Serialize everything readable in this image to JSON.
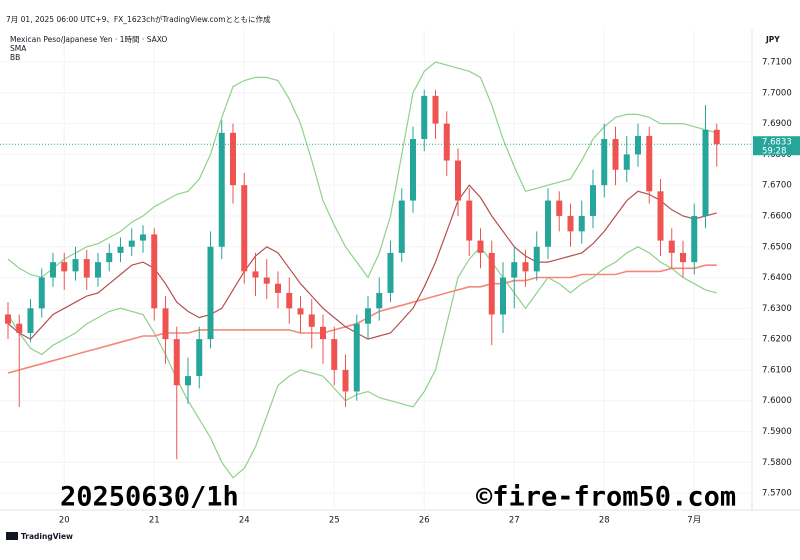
{
  "header": {
    "title": "7月 01, 2025 06:00 UTC+9、FX_1623chがTradingView.comとともに作成",
    "symbol": "Mexican Peso/Japanese Yen · 1時間 · SAXO"
  },
  "footer": {
    "brand": "TradingView"
  },
  "chart_data": {
    "type": "candlestick",
    "currency": "JPY",
    "annotations": [
      "20250630/1h",
      "©fire-from50.com"
    ],
    "categories": [
      null,
      null,
      null,
      null,
      null,
      "20",
      null,
      null,
      null,
      null,
      null,
      null,
      null,
      "21",
      null,
      null,
      null,
      null,
      null,
      null,
      null,
      "24",
      null,
      null,
      null,
      null,
      null,
      null,
      null,
      "25",
      null,
      null,
      null,
      null,
      null,
      null,
      null,
      "26",
      null,
      null,
      null,
      null,
      null,
      null,
      null,
      "27",
      null,
      null,
      null,
      null,
      null,
      null,
      null,
      "28",
      null,
      null,
      null,
      null,
      null,
      null,
      null,
      "7月",
      null,
      null
    ],
    "up_color": "#26a69a",
    "down_color": "#ef5350",
    "ohlc": [
      [
        7.628,
        7.632,
        7.62,
        7.625
      ],
      [
        7.625,
        7.628,
        7.598,
        7.622
      ],
      [
        7.622,
        7.633,
        7.619,
        7.63
      ],
      [
        7.63,
        7.643,
        7.627,
        7.64
      ],
      [
        7.64,
        7.648,
        7.637,
        7.645
      ],
      [
        7.645,
        7.648,
        7.636,
        7.642
      ],
      [
        7.642,
        7.65,
        7.639,
        7.646
      ],
      [
        7.646,
        7.649,
        7.636,
        7.64
      ],
      [
        7.64,
        7.648,
        7.637,
        7.645
      ],
      [
        7.645,
        7.651,
        7.642,
        7.648
      ],
      [
        7.648,
        7.653,
        7.645,
        7.65
      ],
      [
        7.65,
        7.656,
        7.647,
        7.652
      ],
      [
        7.652,
        7.657,
        7.648,
        7.654
      ],
      [
        7.654,
        7.656,
        7.626,
        7.63
      ],
      [
        7.63,
        7.634,
        7.612,
        7.62
      ],
      [
        7.62,
        7.624,
        7.581,
        7.605
      ],
      [
        7.605,
        7.614,
        7.599,
        7.608
      ],
      [
        7.608,
        7.624,
        7.604,
        7.62
      ],
      [
        7.62,
        7.655,
        7.617,
        7.65
      ],
      [
        7.65,
        7.691,
        7.646,
        7.687
      ],
      [
        7.687,
        7.69,
        7.664,
        7.67
      ],
      [
        7.67,
        7.674,
        7.638,
        7.642
      ],
      [
        7.642,
        7.648,
        7.634,
        7.64
      ],
      [
        7.64,
        7.646,
        7.633,
        7.638
      ],
      [
        7.638,
        7.642,
        7.63,
        7.635
      ],
      [
        7.635,
        7.64,
        7.625,
        7.63
      ],
      [
        7.63,
        7.634,
        7.622,
        7.628
      ],
      [
        7.628,
        7.633,
        7.617,
        7.624
      ],
      [
        7.624,
        7.628,
        7.612,
        7.62
      ],
      [
        7.62,
        7.624,
        7.605,
        7.61
      ],
      [
        7.61,
        7.615,
        7.598,
        7.603
      ],
      [
        7.603,
        7.628,
        7.6,
        7.625
      ],
      [
        7.625,
        7.634,
        7.62,
        7.63
      ],
      [
        7.63,
        7.64,
        7.626,
        7.635
      ],
      [
        7.635,
        7.652,
        7.632,
        7.648
      ],
      [
        7.648,
        7.669,
        7.645,
        7.665
      ],
      [
        7.665,
        7.689,
        7.661,
        7.685
      ],
      [
        7.685,
        7.701,
        7.681,
        7.699
      ],
      [
        7.699,
        7.701,
        7.685,
        7.69
      ],
      [
        7.69,
        7.694,
        7.673,
        7.678
      ],
      [
        7.678,
        7.682,
        7.66,
        7.665
      ],
      [
        7.665,
        7.669,
        7.647,
        7.652
      ],
      [
        7.652,
        7.656,
        7.643,
        7.648
      ],
      [
        7.648,
        7.652,
        7.618,
        7.628
      ],
      [
        7.628,
        7.645,
        7.622,
        7.64
      ],
      [
        7.64,
        7.65,
        7.63,
        7.645
      ],
      [
        7.645,
        7.649,
        7.637,
        7.642
      ],
      [
        7.642,
        7.655,
        7.639,
        7.65
      ],
      [
        7.65,
        7.669,
        7.646,
        7.665
      ],
      [
        7.665,
        7.668,
        7.655,
        7.66
      ],
      [
        7.66,
        7.664,
        7.65,
        7.655
      ],
      [
        7.655,
        7.665,
        7.651,
        7.66
      ],
      [
        7.66,
        7.675,
        7.656,
        7.67
      ],
      [
        7.67,
        7.69,
        7.666,
        7.685
      ],
      [
        7.685,
        7.689,
        7.67,
        7.675
      ],
      [
        7.675,
        7.686,
        7.671,
        7.68
      ],
      [
        7.68,
        7.69,
        7.676,
        7.686
      ],
      [
        7.686,
        7.689,
        7.664,
        7.668
      ],
      [
        7.668,
        7.672,
        7.647,
        7.652
      ],
      [
        7.652,
        7.656,
        7.643,
        7.648
      ],
      [
        7.648,
        7.652,
        7.64,
        7.645
      ],
      [
        7.645,
        7.664,
        7.641,
        7.66
      ],
      [
        7.66,
        7.696,
        7.656,
        7.688
      ],
      [
        7.688,
        7.69,
        7.676,
        7.6833
      ]
    ],
    "overlays": [
      {
        "name": "SMA",
        "color": "#f4877a",
        "values": [
          7.609,
          7.61,
          7.611,
          7.612,
          7.613,
          7.614,
          7.615,
          7.616,
          7.617,
          7.618,
          7.619,
          7.62,
          7.621,
          7.621,
          7.622,
          7.622,
          7.622,
          7.623,
          7.623,
          7.623,
          7.623,
          7.623,
          7.623,
          7.623,
          7.623,
          7.623,
          7.622,
          7.622,
          7.622,
          7.623,
          7.624,
          7.625,
          7.627,
          7.629,
          7.63,
          7.631,
          7.632,
          7.633,
          7.634,
          7.635,
          7.636,
          7.637,
          7.637,
          7.638,
          7.638,
          7.639,
          7.639,
          7.64,
          7.64,
          7.64,
          7.64,
          7.641,
          7.641,
          7.641,
          7.641,
          7.642,
          7.642,
          7.642,
          7.642,
          7.643,
          7.643,
          7.643,
          7.644,
          7.644
        ]
      },
      {
        "name": "BB",
        "basis_color": "#b5504f",
        "band_color": "#8fd18a",
        "basis": [
          7.625,
          7.622,
          7.62,
          7.624,
          7.628,
          7.63,
          7.632,
          7.634,
          7.635,
          7.638,
          7.641,
          7.644,
          7.645,
          7.643,
          7.638,
          7.632,
          7.629,
          7.627,
          7.628,
          7.63,
          7.636,
          7.642,
          7.647,
          7.65,
          7.648,
          7.643,
          7.638,
          7.634,
          7.63,
          7.627,
          7.624,
          7.622,
          7.62,
          7.621,
          7.622,
          7.626,
          7.63,
          7.637,
          7.645,
          7.655,
          7.665,
          7.67,
          7.666,
          7.66,
          7.655,
          7.65,
          7.647,
          7.645,
          7.645,
          7.646,
          7.647,
          7.648,
          7.651,
          7.655,
          7.66,
          7.665,
          7.668,
          7.667,
          7.665,
          7.662,
          7.66,
          7.659,
          7.66,
          7.661
        ],
        "upper": [
          7.646,
          7.643,
          7.641,
          7.64,
          7.643,
          7.646,
          7.648,
          7.65,
          7.651,
          7.653,
          7.655,
          7.658,
          7.66,
          7.663,
          7.665,
          7.667,
          7.668,
          7.672,
          7.68,
          7.692,
          7.702,
          7.704,
          7.705,
          7.705,
          7.704,
          7.698,
          7.69,
          7.678,
          7.665,
          7.657,
          7.65,
          7.645,
          7.64,
          7.648,
          7.66,
          7.68,
          7.7,
          7.707,
          7.71,
          7.709,
          7.708,
          7.707,
          7.705,
          7.696,
          7.685,
          7.676,
          7.668,
          7.669,
          7.67,
          7.671,
          7.672,
          7.678,
          7.685,
          7.689,
          7.692,
          7.693,
          7.693,
          7.692,
          7.69,
          7.69,
          7.69,
          7.689,
          7.688,
          7.687
        ],
        "lower": [
          7.628,
          7.622,
          7.617,
          7.615,
          7.618,
          7.62,
          7.622,
          7.625,
          7.627,
          7.629,
          7.63,
          7.629,
          7.628,
          7.622,
          7.615,
          7.607,
          7.6,
          7.594,
          7.588,
          7.58,
          7.575,
          7.578,
          7.585,
          7.595,
          7.605,
          7.608,
          7.61,
          7.609,
          7.608,
          7.604,
          7.6,
          7.602,
          7.603,
          7.601,
          7.6,
          7.599,
          7.598,
          7.603,
          7.61,
          7.625,
          7.64,
          7.646,
          7.65,
          7.645,
          7.64,
          7.635,
          7.63,
          7.635,
          7.64,
          7.638,
          7.635,
          7.638,
          7.64,
          7.643,
          7.645,
          7.648,
          7.65,
          7.648,
          7.645,
          7.643,
          7.64,
          7.638,
          7.636,
          7.635
        ]
      }
    ],
    "last_price": 7.6833,
    "countdown": "59:28",
    "last_color": "#26a69a",
    "ylim": [
      7.5645,
      7.7204
    ],
    "yticks": [
      {
        "value": 7.57,
        "label": "7.5700"
      },
      {
        "value": 7.58,
        "label": "7.5800"
      },
      {
        "value": 7.59,
        "label": "7.5900"
      },
      {
        "value": 7.6,
        "label": "7.6000"
      },
      {
        "value": 7.61,
        "label": "7.6100"
      },
      {
        "value": 7.62,
        "label": "7.6200"
      },
      {
        "value": 7.63,
        "label": "7.6300"
      },
      {
        "value": 7.64,
        "label": "7.6400"
      },
      {
        "value": 7.65,
        "label": "7.6500"
      },
      {
        "value": 7.66,
        "label": "7.6600"
      },
      {
        "value": 7.67,
        "label": "7.6700"
      },
      {
        "value": 7.68,
        "label": "7.6800"
      },
      {
        "value": 7.69,
        "label": "7.6900"
      },
      {
        "value": 7.7,
        "label": "7.7000"
      },
      {
        "value": 7.71,
        "label": "7.7100"
      }
    ],
    "grid": true
  }
}
